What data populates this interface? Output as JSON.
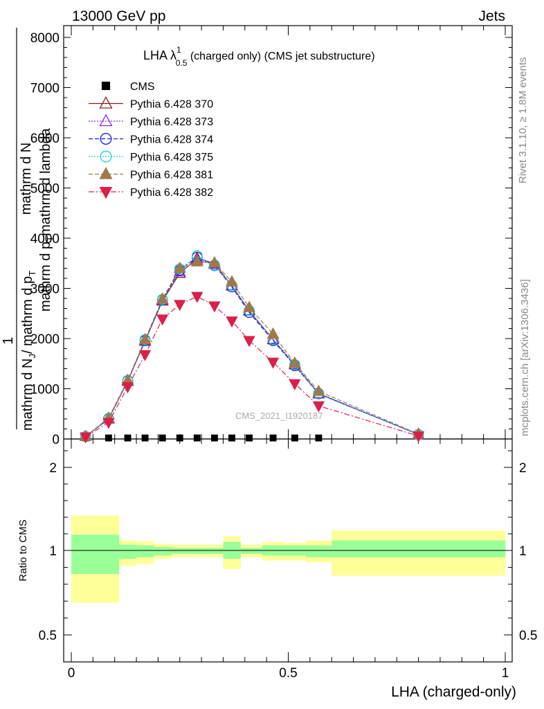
{
  "header": {
    "left": "13000 GeV pp",
    "right": "Jets"
  },
  "side_labels": {
    "rivet": "Rivet 3.1.10, ≥ 1.8M events",
    "mcplots": "mcplots.cern.ch [arXiv:1306.3436]"
  },
  "watermark": "CMS_2021_I1920187",
  "colors": {
    "cms": "#000000",
    "p370": "#8b1a1a",
    "p373": "#8a2be2",
    "p374": "#1e1ee6",
    "p375": "#19d3c5",
    "p381": "#a0784a",
    "p382": "#dc1e4a",
    "band_inner": "#99ff99",
    "band_outer": "#ffff99"
  },
  "chart_data": [
    {
      "panel": "main",
      "type": "line",
      "title_main": "LHA λ",
      "title_sup": "1",
      "title_sub": "0.5",
      "title_rest": " (charged only) (CMS jet substructure)",
      "ylabel_parts": [
        "1",
        "mathrm d N",
        "J",
        "/ mathrm d p",
        "T",
        "mathrm d N",
        "mathrm d p",
        "T",
        "mathrm d lambda"
      ],
      "ylim": [
        0,
        8000
      ],
      "yticks": [
        0,
        1000,
        2000,
        3000,
        4000,
        5000,
        6000,
        7000,
        8000
      ],
      "ytick_labels": [
        "0",
        "1000",
        "2000",
        "3000",
        "4000",
        "5000",
        "6000",
        "7000",
        "8000"
      ],
      "xlim": [
        0,
        1
      ],
      "x": [
        0.033,
        0.086,
        0.13,
        0.17,
        0.21,
        0.25,
        0.29,
        0.33,
        0.37,
        0.41,
        0.465,
        0.515,
        0.57,
        0.8
      ],
      "series": [
        {
          "name": "CMS",
          "marker": "square",
          "dash": "",
          "values": [
            20,
            20,
            20,
            20,
            20,
            20,
            20,
            20,
            20,
            20,
            20,
            20,
            20,
            null
          ]
        },
        {
          "name": "Pythia 6.428 370",
          "marker": "triangle-open",
          "dash": "",
          "values": [
            50,
            400,
            1150,
            1950,
            2750,
            3300,
            3600,
            3500,
            3050,
            2550,
            1980,
            1480,
            900,
            90
          ]
        },
        {
          "name": "Pythia 6.428 373",
          "marker": "triangle-open",
          "dash": "2,2",
          "values": [
            50,
            410,
            1160,
            1960,
            2770,
            3330,
            3560,
            3480,
            3060,
            2560,
            1990,
            1490,
            910,
            90
          ]
        },
        {
          "name": "Pythia 6.428 374",
          "marker": "circle-open",
          "dash": "6,3",
          "values": [
            50,
            400,
            1160,
            1960,
            2770,
            3360,
            3620,
            3460,
            3030,
            2520,
            1960,
            1460,
            900,
            90
          ]
        },
        {
          "name": "Pythia 6.428 375",
          "marker": "circle-open",
          "dash": "2,2",
          "values": [
            50,
            410,
            1170,
            1980,
            2780,
            3390,
            3650,
            3450,
            3060,
            2560,
            1980,
            1480,
            910,
            90
          ]
        },
        {
          "name": "Pythia 6.428 381",
          "marker": "triangle-filled",
          "dash": "6,3",
          "values": [
            50,
            420,
            1170,
            1980,
            2790,
            3400,
            3530,
            3510,
            3130,
            2620,
            2090,
            1510,
            950,
            100
          ]
        },
        {
          "name": "Pythia 6.428 382",
          "marker": "triangle-down-filled",
          "dash": "8,3,2,3",
          "values": [
            40,
            330,
            1040,
            1680,
            2390,
            2680,
            2840,
            2650,
            2350,
            1960,
            1530,
            1100,
            660,
            60
          ]
        }
      ]
    },
    {
      "panel": "ratio",
      "type": "area",
      "ylabel": "Ratio to CMS",
      "xlabel": "LHA (charged-only)",
      "xlim": [
        0,
        1
      ],
      "xticks": [
        0,
        0.5,
        1
      ],
      "xtick_labels": [
        "0",
        "0.5",
        "1"
      ],
      "yticks": [
        0.5,
        1,
        2
      ],
      "ytick_labels": [
        "0.5",
        "1",
        "2"
      ],
      "bin_edges": [
        0,
        0.06,
        0.11,
        0.15,
        0.19,
        0.23,
        0.27,
        0.31,
        0.35,
        0.39,
        0.44,
        0.49,
        0.54,
        0.6,
        1.0
      ],
      "inner_band": [
        [
          0.86,
          1.19
        ],
        [
          0.86,
          1.19
        ],
        [
          0.95,
          1.07
        ],
        [
          0.96,
          1.06
        ],
        [
          0.97,
          1.04
        ],
        [
          0.98,
          1.03
        ],
        [
          0.98,
          1.03
        ],
        [
          0.98,
          1.03
        ],
        [
          0.95,
          1.1
        ],
        [
          0.98,
          1.03
        ],
        [
          0.97,
          1.06
        ],
        [
          0.97,
          1.06
        ],
        [
          0.96,
          1.06
        ],
        [
          0.96,
          1.12
        ]
      ],
      "outer_band": [
        [
          0.69,
          1.42
        ],
        [
          0.69,
          1.42
        ],
        [
          0.91,
          1.12
        ],
        [
          0.92,
          1.11
        ],
        [
          0.95,
          1.08
        ],
        [
          0.96,
          1.07
        ],
        [
          0.96,
          1.07
        ],
        [
          0.96,
          1.07
        ],
        [
          0.89,
          1.17
        ],
        [
          0.96,
          1.07
        ],
        [
          0.94,
          1.1
        ],
        [
          0.94,
          1.09
        ],
        [
          0.93,
          1.12
        ],
        [
          0.85,
          1.24
        ]
      ]
    }
  ]
}
